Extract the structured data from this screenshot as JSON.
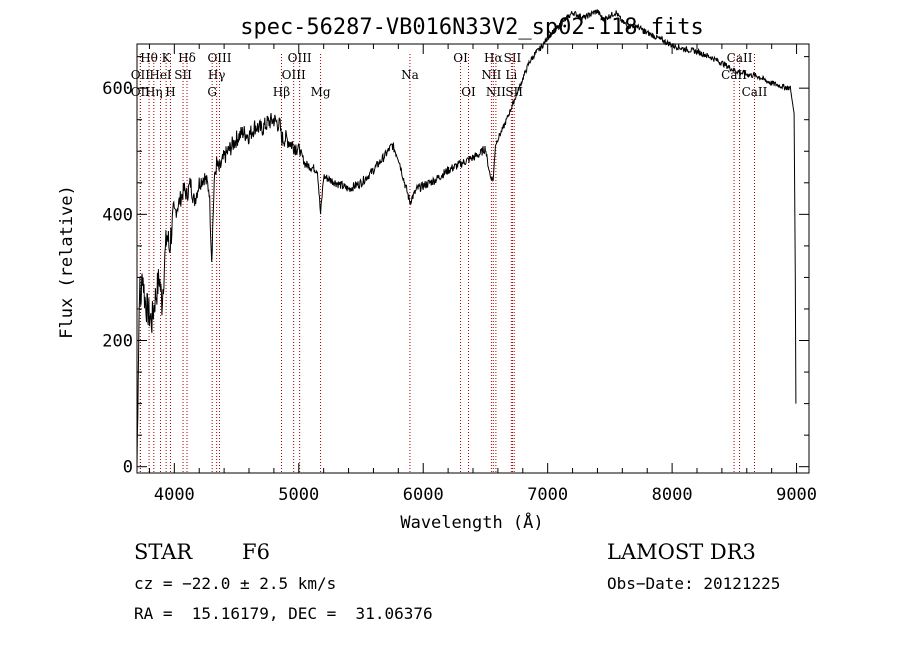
{
  "chart_data": {
    "type": "line",
    "title": "spec-56287-VB016N33V2_sp02-118.fits",
    "xlabel": "Wavelength (Å)",
    "ylabel": "Flux (relative)",
    "xlim": [
      3700,
      9100
    ],
    "ylim": [
      -10,
      670
    ],
    "x_ticks": [
      4000,
      5000,
      6000,
      7000,
      8000,
      9000
    ],
    "x_tick_labels": [
      "4000",
      "5000",
      "6000",
      "7000",
      "8000",
      "9000"
    ],
    "y_ticks": [
      0,
      200,
      400,
      600
    ],
    "y_tick_labels": [
      "0",
      "200",
      "400",
      "600"
    ],
    "series": [
      {
        "name": "flux",
        "x": [
          3700,
          3710,
          3720,
          3730,
          3745,
          3760,
          3780,
          3800,
          3820,
          3840,
          3860,
          3880,
          3900,
          3920,
          3940,
          3960,
          3980,
          4000,
          4040,
          4080,
          4100,
          4130,
          4160,
          4200,
          4240,
          4280,
          4300,
          4320,
          4340,
          4360,
          4400,
          4450,
          4500,
          4550,
          4600,
          4650,
          4700,
          4750,
          4800,
          4850,
          4861,
          4900,
          4950,
          5000,
          5050,
          5100,
          5150,
          5175,
          5200,
          5300,
          5400,
          5500,
          5600,
          5700,
          5750,
          5800,
          5850,
          5893,
          5950,
          6000,
          6100,
          6200,
          6300,
          6400,
          6450,
          6500,
          6520,
          6540,
          6563,
          6580,
          6600,
          6650,
          6700,
          6750,
          6800,
          6850,
          6900,
          6950,
          7000,
          7050,
          7100,
          7150,
          7200,
          7250,
          7300,
          7350,
          7400,
          7450,
          7500,
          7550,
          7600,
          7650,
          7700,
          7800,
          7900,
          8000,
          8100,
          8200,
          8300,
          8400,
          8500,
          8542,
          8600,
          8662,
          8700,
          8750,
          8800,
          8850,
          8900,
          8950,
          8980,
          8990,
          8995
        ],
        "y": [
          0,
          150,
          290,
          260,
          310,
          270,
          250,
          240,
          230,
          260,
          280,
          300,
          260,
          320,
          370,
          345,
          380,
          400,
          420,
          440,
          430,
          450,
          420,
          450,
          460,
          440,
          330,
          450,
          480,
          470,
          490,
          505,
          520,
          530,
          525,
          540,
          535,
          545,
          550,
          540,
          520,
          520,
          510,
          505,
          480,
          475,
          470,
          400,
          460,
          450,
          440,
          450,
          470,
          495,
          510,
          490,
          450,
          420,
          440,
          445,
          455,
          470,
          480,
          490,
          495,
          505,
          480,
          460,
          455,
          510,
          520,
          540,
          565,
          590,
          615,
          640,
          655,
          665,
          680,
          690,
          700,
          710,
          720,
          715,
          712,
          718,
          722,
          708,
          715,
          720,
          705,
          698,
          700,
          688,
          678,
          668,
          662,
          658,
          650,
          640,
          628,
          625,
          622,
          620,
          618,
          612,
          608,
          605,
          602,
          600,
          560,
          300,
          100
        ]
      }
    ],
    "emission_lines": [
      {
        "label": "Hθ",
        "x": 3797,
        "row": 1
      },
      {
        "label": "K",
        "x": 3934,
        "row": 1
      },
      {
        "label": "Hδ",
        "x": 4102,
        "row": 1
      },
      {
        "label": "OIII",
        "x": 4363,
        "row": 1
      },
      {
        "label": "OIII",
        "x": 5007,
        "row": 1
      },
      {
        "label": "OII",
        "x": 3727,
        "row": 2
      },
      {
        "label": "HeI",
        "x": 3889,
        "row": 2
      },
      {
        "label": "SII",
        "x": 4070,
        "row": 2
      },
      {
        "label": "Hγ",
        "x": 4340,
        "row": 2
      },
      {
        "label": "OIII",
        "x": 4959,
        "row": 2
      },
      {
        "label": "Na",
        "x": 5893,
        "row": 2
      },
      {
        "label": "OII",
        "x": 3727,
        "row": 3
      },
      {
        "label": "Hη",
        "x": 3835,
        "row": 3
      },
      {
        "label": "H",
        "x": 3969,
        "row": 3
      },
      {
        "label": "G",
        "x": 4304,
        "row": 3
      },
      {
        "label": "Hβ",
        "x": 4861,
        "row": 3
      },
      {
        "label": "Mg",
        "x": 5175,
        "row": 3
      },
      {
        "label": "OI",
        "x": 6300,
        "row": 1
      },
      {
        "label": "OI",
        "x": 6364,
        "row": 3
      },
      {
        "label": "Hα",
        "x": 6563,
        "row": 1
      },
      {
        "label": "SII",
        "x": 6717,
        "row": 1
      },
      {
        "label": "NII",
        "x": 6548,
        "row": 2
      },
      {
        "label": "Li",
        "x": 6708,
        "row": 2
      },
      {
        "label": "NII",
        "x": 6584,
        "row": 3
      },
      {
        "label": "SII",
        "x": 6731,
        "row": 3
      },
      {
        "label": "CaII",
        "x": 8542,
        "row": 1
      },
      {
        "label": "CaII",
        "x": 8498,
        "row": 2
      },
      {
        "label": "CaII",
        "x": 8662,
        "row": 3
      }
    ]
  },
  "info": {
    "class_label": "STAR",
    "subclass": "F6",
    "survey": "LAMOST DR3",
    "cz": "cz = −22.0 ± 2.5 km/s",
    "obs_date": "Obs−Date: 20121225",
    "coords": "RA =  15.16179, DEC =  31.06376"
  },
  "colors": {
    "line_marker": "#aa0000",
    "spectrum": "#000000"
  }
}
